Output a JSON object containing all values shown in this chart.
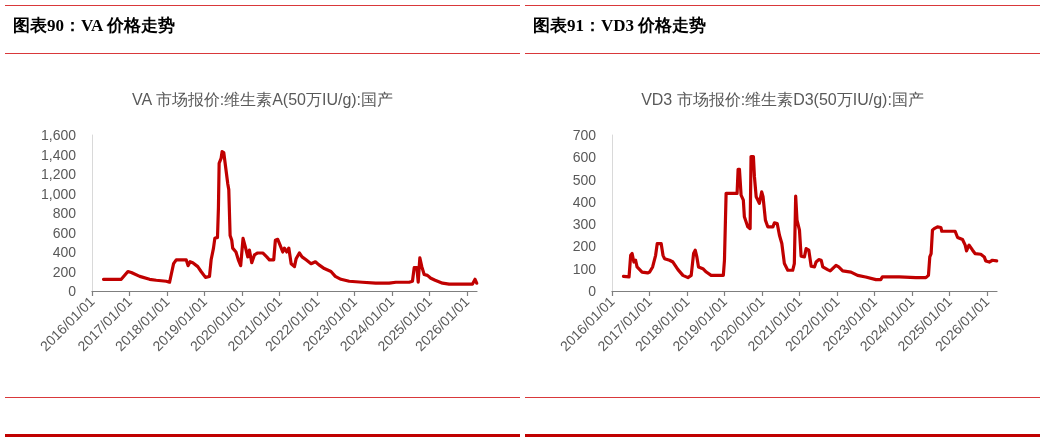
{
  "chart_data": [
    {
      "type": "line",
      "title": "图表90：VA 价格走势",
      "subtitle": "VA 市场报价:维生素A(50万IU/g):国产",
      "color": "#c00000",
      "marker": "none",
      "line_style": "solid",
      "grid": false,
      "x": [
        "2016-04-22",
        "2016-10-12",
        "2016-12-16",
        "2017-01-18",
        "2017-04-10",
        "2017-07-15",
        "2017-09-18",
        "2017-12-24",
        "2018-01-26",
        "2018-03-06",
        "2018-04-01",
        "2018-07-07",
        "2018-07-26",
        "2018-08-14",
        "2018-09-09",
        "2018-10-28",
        "2018-11-29",
        "2019-01-11",
        "2019-02-19",
        "2019-03-07",
        "2019-03-30",
        "2019-04-12",
        "2019-05-08",
        "2019-05-17",
        "2019-05-24",
        "2019-06-12",
        "2019-06-22",
        "2019-07-08",
        "2019-07-24",
        "2019-08-16",
        "2019-08-26",
        "2019-09-08",
        "2019-09-24",
        "2019-10-03",
        "2019-11-04",
        "2019-11-27",
        "2019-12-20",
        "2020-01-12",
        "2020-02-04",
        "2020-02-27",
        "2020-03-14",
        "2020-04-06",
        "2020-05-02",
        "2020-06-03",
        "2020-07-22",
        "2020-08-30",
        "2020-09-25",
        "2020-11-06",
        "2020-11-22",
        "2020-12-15",
        "2021-01-07",
        "2021-02-02",
        "2021-02-18",
        "2021-03-13",
        "2021-04-02",
        "2021-04-25",
        "2021-05-27",
        "2021-06-12",
        "2021-07-14",
        "2021-08-09",
        "2021-09-17",
        "2021-11-05",
        "2021-12-17",
        "2022-01-18",
        "2022-03-14",
        "2022-05-18",
        "2022-06-29",
        "2022-08-23",
        "2022-11-12",
        "2023-03-20",
        "2023-07-28",
        "2023-12-06",
        "2024-02-09",
        "2024-06-18",
        "2024-07-20",
        "2024-08-06",
        "2024-09-01",
        "2024-09-14",
        "2024-09-24",
        "2024-09-30",
        "2024-10-19",
        "2024-11-11",
        "2024-12-13",
        "2025-01-15",
        "2025-02-26",
        "2025-05-09",
        "2025-07-12",
        "2025-11-19",
        "2026-02-24",
        "2026-03-22",
        "2026-04-07"
      ],
      "values": [
        120,
        120,
        200,
        190,
        150,
        120,
        110,
        100,
        90,
        280,
        320,
        320,
        260,
        300,
        290,
        250,
        200,
        140,
        150,
        320,
        440,
        540,
        550,
        850,
        1310,
        1360,
        1430,
        1420,
        1290,
        1100,
        1040,
        570,
        520,
        440,
        400,
        320,
        260,
        540,
        450,
        350,
        420,
        290,
        370,
        390,
        390,
        350,
        320,
        320,
        520,
        530,
        470,
        400,
        440,
        400,
        440,
        280,
        250,
        330,
        390,
        350,
        320,
        280,
        300,
        270,
        230,
        200,
        150,
        120,
        100,
        90,
        80,
        80,
        90,
        90,
        100,
        240,
        240,
        90,
        250,
        340,
        250,
        170,
        160,
        130,
        110,
        80,
        70,
        70,
        70,
        120,
        80
      ],
      "xlim": [
        "2016-01-01",
        "2026-04-10"
      ],
      "xticks": [
        {
          "value": "2016-01-01",
          "label": "2016/01/01"
        },
        {
          "value": "2017-01-01",
          "label": "2017/01/01"
        },
        {
          "value": "2018-01-01",
          "label": "2018/01/01"
        },
        {
          "value": "2019-01-01",
          "label": "2019/01/01"
        },
        {
          "value": "2020-01-01",
          "label": "2020/01/01"
        },
        {
          "value": "2021-01-01",
          "label": "2021/01/01"
        },
        {
          "value": "2022-01-01",
          "label": "2022/01/01"
        },
        {
          "value": "2023-01-01",
          "label": "2023/01/01"
        },
        {
          "value": "2024-01-01",
          "label": "2024/01/01"
        },
        {
          "value": "2025-01-01",
          "label": "2025/01/01"
        },
        {
          "value": "2026-01-01",
          "label": "2026/01/01"
        }
      ],
      "ylim": [
        0,
        1600
      ],
      "yticks": [
        0,
        200,
        400,
        600,
        800,
        {
          "value": 1000,
          "label": "1,000"
        },
        {
          "value": 1200,
          "label": "1,200"
        },
        {
          "value": 1400,
          "label": "1,400"
        },
        {
          "value": 1600,
          "label": "1,600"
        }
      ]
    },
    {
      "type": "line",
      "title": "图表91：VD3 价格走势",
      "subtitle": "VD3 市场报价:维生素D3(50万IU/g):国产",
      "color": "#c00000",
      "marker": "none",
      "line_style": "solid",
      "grid": false,
      "x": [
        "2016-04-22",
        "2016-06-15",
        "2016-07-01",
        "2016-07-15",
        "2016-08-01",
        "2016-08-18",
        "2016-09-01",
        "2016-10-20",
        "2016-12-13",
        "2017-01-02",
        "2017-01-31",
        "2017-03-01",
        "2017-03-17",
        "2017-04-24",
        "2017-05-12",
        "2017-05-27",
        "2017-07-15",
        "2017-08-17",
        "2017-10-05",
        "2017-11-22",
        "2018-01-10",
        "2018-02-11",
        "2018-03-06",
        "2018-03-22",
        "2018-04-07",
        "2018-04-23",
        "2018-06-05",
        "2018-07-08",
        "2018-08-24",
        "2018-12-21",
        "2019-01-01",
        "2019-01-17",
        "2019-05-04",
        "2019-05-14",
        "2019-05-27",
        "2019-06-12",
        "2019-07-04",
        "2019-07-14",
        "2019-08-16",
        "2019-09-08",
        "2019-09-17",
        "2019-10-10",
        "2019-10-20",
        "2019-11-06",
        "2019-11-22",
        "2019-12-07",
        "2019-12-30",
        "2020-01-12",
        "2020-02-04",
        "2020-02-27",
        "2020-04-17",
        "2020-05-02",
        "2020-05-29",
        "2020-06-20",
        "2020-07-13",
        "2020-08-07",
        "2020-09-09",
        "2020-10-27",
        "2020-11-12",
        "2020-11-25",
        "2020-12-08",
        "2021-01-01",
        "2021-01-17",
        "2021-02-18",
        "2021-03-07",
        "2021-04-02",
        "2021-04-25",
        "2021-05-27",
        "2021-06-12",
        "2021-07-08",
        "2021-08-01",
        "2021-08-16",
        "2021-10-02",
        "2021-10-28",
        "2021-12-23",
        "2022-01-18",
        "2022-02-26",
        "2022-05-18",
        "2022-07-21",
        "2022-10-08",
        "2023-01-16",
        "2023-03-04",
        "2023-03-20",
        "2023-08-31",
        "2024-02-09",
        "2024-05-17",
        "2024-06-11",
        "2024-06-24",
        "2024-07-07",
        "2024-07-20",
        "2024-08-06",
        "2024-09-07",
        "2024-10-10",
        "2024-10-19",
        "2025-02-26",
        "2025-03-22",
        "2025-05-09",
        "2025-06-04",
        "2025-06-17",
        "2025-07-06",
        "2025-07-12",
        "2025-08-15",
        "2025-09-08",
        "2025-11-03",
        "2025-12-07",
        "2025-12-21",
        "2026-01-25",
        "2026-02-24",
        "2026-04-07"
      ],
      "values": [
        66,
        63,
        160,
        168,
        130,
        138,
        108,
        85,
        81,
        85,
        108,
        160,
        213,
        213,
        160,
        145,
        138,
        130,
        96,
        70,
        60,
        70,
        168,
        183,
        153,
        108,
        100,
        85,
        70,
        70,
        138,
        438,
        438,
        546,
        546,
        430,
        408,
        333,
        288,
        280,
        603,
        603,
        513,
        423,
        408,
        393,
        445,
        423,
        318,
        288,
        288,
        306,
        303,
        250,
        213,
        123,
        93,
        93,
        123,
        426,
        318,
        273,
        156,
        153,
        190,
        183,
        111,
        108,
        130,
        141,
        138,
        108,
        96,
        90,
        115,
        108,
        90,
        85,
        70,
        63,
        51,
        51,
        63,
        63,
        60,
        60,
        70,
        153,
        168,
        273,
        280,
        288,
        285,
        268,
        268,
        240,
        231,
        206,
        180,
        201,
        206,
        183,
        168,
        165,
        153,
        135,
        130,
        138,
        135
      ],
      "xlim": [
        "2016-01-01",
        "2026-04-10"
      ],
      "xticks": [
        {
          "value": "2016-01-01",
          "label": "2016/01/01"
        },
        {
          "value": "2017-01-01",
          "label": "2017/01/01"
        },
        {
          "value": "2018-01-01",
          "label": "2018/01/01"
        },
        {
          "value": "2019-01-01",
          "label": "2019/01/01"
        },
        {
          "value": "2020-01-01",
          "label": "2020/01/01"
        },
        {
          "value": "2021-01-01",
          "label": "2021/01/01"
        },
        {
          "value": "2022-01-01",
          "label": "2022/01/01"
        },
        {
          "value": "2023-01-01",
          "label": "2023/01/01"
        },
        {
          "value": "2024-01-01",
          "label": "2024/01/01"
        },
        {
          "value": "2025-01-01",
          "label": "2025/01/01"
        },
        {
          "value": "2026-01-01",
          "label": "2026/01/01"
        }
      ],
      "ylim": [
        0,
        700
      ],
      "yticks": [
        0,
        100,
        200,
        300,
        400,
        500,
        600,
        700
      ]
    }
  ]
}
